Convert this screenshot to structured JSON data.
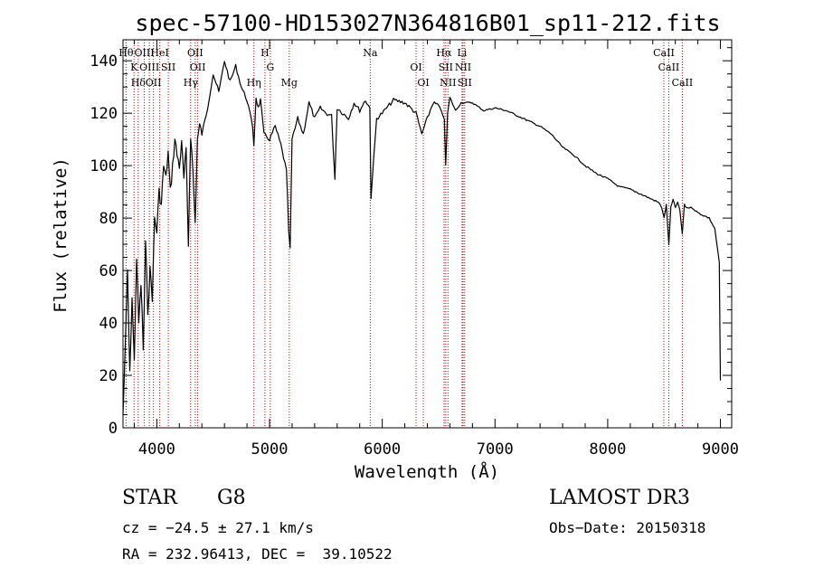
{
  "chart_data": {
    "type": "line",
    "title": "spec-57100-HD153027N364816B01_sp11-212.fits",
    "xlabel": "Wavelength (Å)",
    "ylabel": "Flux (relative)",
    "xlim": [
      3700,
      9100
    ],
    "ylim": [
      0,
      148
    ],
    "xticks": [
      4000,
      5000,
      6000,
      7000,
      8000,
      9000
    ],
    "yticks": [
      0,
      20,
      40,
      60,
      80,
      100,
      120,
      140
    ],
    "grid": false,
    "series": [
      {
        "name": "flux",
        "x": [
          3700,
          3720,
          3740,
          3760,
          3780,
          3800,
          3820,
          3840,
          3860,
          3880,
          3900,
          3920,
          3940,
          3960,
          3980,
          4000,
          4020,
          4040,
          4060,
          4080,
          4100,
          4120,
          4140,
          4160,
          4180,
          4200,
          4220,
          4240,
          4260,
          4280,
          4300,
          4320,
          4340,
          4360,
          4380,
          4400,
          4450,
          4500,
          4550,
          4600,
          4650,
          4700,
          4750,
          4800,
          4850,
          4861,
          4880,
          4900,
          4920,
          4950,
          5000,
          5050,
          5100,
          5150,
          5170,
          5183,
          5200,
          5250,
          5300,
          5350,
          5400,
          5450,
          5500,
          5550,
          5580,
          5600,
          5650,
          5700,
          5750,
          5800,
          5850,
          5890,
          5900,
          5950,
          6000,
          6100,
          6200,
          6300,
          6350,
          6400,
          6450,
          6500,
          6550,
          6563,
          6580,
          6600,
          6650,
          6700,
          6800,
          6900,
          7000,
          7100,
          7200,
          7300,
          7400,
          7500,
          7600,
          7700,
          7800,
          7900,
          8000,
          8100,
          8200,
          8300,
          8400,
          8450,
          8480,
          8500,
          8520,
          8542,
          8560,
          8580,
          8600,
          8620,
          8640,
          8662,
          8680,
          8700,
          8750,
          8800,
          8850,
          8900,
          8950,
          8990,
          9000
        ],
        "y": [
          5,
          30,
          60,
          20,
          50,
          25,
          65,
          40,
          55,
          30,
          70,
          45,
          60,
          50,
          80,
          75,
          90,
          85,
          100,
          95,
          105,
          90,
          100,
          110,
          104,
          100,
          108,
          95,
          105,
          70,
          112,
          98,
          78,
          110,
          115,
          112,
          122,
          135,
          128,
          140,
          132,
          138,
          130,
          125,
          115,
          108,
          126,
          122,
          125,
          112,
          110,
          115,
          108,
          98,
          75,
          68,
          110,
          118,
          112,
          124,
          118,
          122,
          120,
          119,
          95,
          122,
          120,
          118,
          124,
          121,
          125,
          122,
          88,
          118,
          120,
          125,
          124,
          120,
          112,
          118,
          124,
          123,
          118,
          100,
          120,
          126,
          121,
          124,
          124,
          121,
          122,
          121,
          119,
          117,
          115,
          112,
          107,
          104,
          100,
          97,
          95,
          92,
          91,
          89,
          87,
          86,
          84,
          80,
          85,
          70,
          84,
          87,
          84,
          86,
          83,
          74,
          85,
          84,
          84,
          82,
          81,
          80,
          76,
          63,
          18
        ]
      }
    ],
    "line_markers": {
      "wavelengths": [
        3727,
        3798,
        3835,
        3889,
        3934,
        3970,
        4026,
        4102,
        4300,
        4341,
        4363,
        4861,
        4959,
        5007,
        5175,
        5893,
        6300,
        6364,
        6548,
        6563,
        6583,
        6708,
        6717,
        6731,
        8498,
        8542,
        8662
      ],
      "labels": [
        "Hθ",
        "K",
        "Hδ",
        "OIII",
        "OIII",
        "OII",
        "HeI",
        "SII",
        "Hγ",
        "OII",
        "OII",
        "Hη",
        "H",
        "G",
        "Mg",
        "Na",
        "OI",
        "OI",
        "Hα",
        "SII",
        "NII",
        "Li",
        "NII",
        "SII",
        "CaII",
        "CaII",
        "CaII"
      ]
    }
  },
  "info": {
    "object_class": "STAR",
    "subclass": "G8",
    "survey": "LAMOST DR3",
    "redshift": "cz = −24.5 ± 27.1 km/s",
    "obs_date": "Obs−Date: 20150318",
    "coords": "RA = 232.96413, DEC =  39.10522"
  }
}
